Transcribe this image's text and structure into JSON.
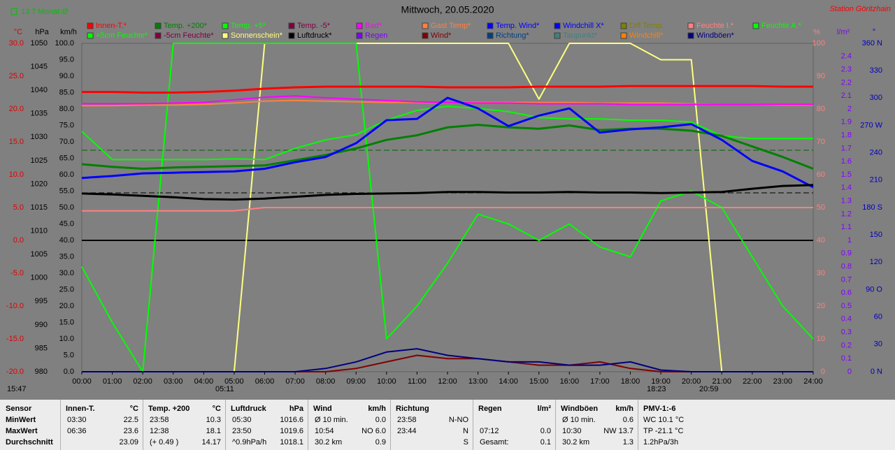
{
  "header": {
    "monat": "13.7 Monat-Ø",
    "title": "Mittwoch, 20.05.2020",
    "station": "Station Göritzhain"
  },
  "chart_data": {
    "type": "line",
    "categories": [
      "00:00",
      "01:00",
      "02:00",
      "03:00",
      "04:00",
      "05:00",
      "06:00",
      "07:00",
      "08:00",
      "09:00",
      "10:00",
      "11:00",
      "12:00",
      "13:00",
      "14:00",
      "15:00",
      "16:00",
      "17:00",
      "18:00",
      "19:00",
      "20:00",
      "21:00",
      "22:00",
      "23:00",
      "24:00"
    ],
    "axes": [
      {
        "label": "°C",
        "color": "#e00000",
        "side": "left",
        "lim": [
          -20,
          30
        ],
        "ticks": [
          {
            "value": 30,
            "label": "30.0"
          },
          {
            "value": 25,
            "label": "25.0"
          },
          {
            "value": 20,
            "label": "20.0"
          },
          {
            "value": 15,
            "label": "15.0"
          },
          {
            "value": 10,
            "label": "10.0"
          },
          {
            "value": 5,
            "label": "5.0"
          },
          {
            "value": 0,
            "label": "0.0"
          },
          {
            "value": -5,
            "label": "-5.0"
          },
          {
            "value": -10,
            "label": "-10.0"
          },
          {
            "value": -15,
            "label": "-15.0"
          },
          {
            "value": -20,
            "label": "-20.0"
          }
        ]
      },
      {
        "label": "hPa",
        "color": "#000000",
        "side": "left",
        "lim": [
          980,
          1050
        ],
        "ticks": [
          1050,
          1045,
          1040,
          1035,
          1030,
          1025,
          1020,
          1015,
          1010,
          1005,
          1000,
          995,
          990,
          985,
          980
        ]
      },
      {
        "label": "km/h",
        "color": "#000000",
        "side": "left",
        "lim": [
          0,
          100
        ],
        "ticks": [
          {
            "value": 100,
            "label": "100.0"
          },
          {
            "value": 95,
            "label": "95.0"
          },
          {
            "value": 90,
            "label": "90.0"
          },
          {
            "value": 85,
            "label": "85.0"
          },
          {
            "value": 80,
            "label": "80.0"
          },
          {
            "value": 75,
            "label": "75.0"
          },
          {
            "value": 70,
            "label": "70.0"
          },
          {
            "value": 65,
            "label": "65.0"
          },
          {
            "value": 60,
            "label": "60.0"
          },
          {
            "value": 55,
            "label": "55.0"
          },
          {
            "value": 50,
            "label": "50.0"
          },
          {
            "value": 45,
            "label": "45.0"
          },
          {
            "value": 40,
            "label": "40.0"
          },
          {
            "value": 35,
            "label": "35.0"
          },
          {
            "value": 30,
            "label": "30.0"
          },
          {
            "value": 25,
            "label": "25.0"
          },
          {
            "value": 20,
            "label": "20.0"
          },
          {
            "value": 15,
            "label": "15.0"
          },
          {
            "value": 10,
            "label": "10.0"
          },
          {
            "value": 5,
            "label": "5.0"
          },
          {
            "value": 0,
            "label": "0.0"
          }
        ]
      },
      {
        "label": "%",
        "color": "#ff8080",
        "side": "right",
        "lim": [
          0,
          100
        ],
        "ticks": [
          100,
          90,
          80,
          70,
          60,
          50,
          40,
          30,
          20,
          10,
          0
        ]
      },
      {
        "label": "l/m²",
        "color": "#8000ff",
        "side": "right",
        "lim": [
          0,
          2.5
        ],
        "ticks": [
          2.4,
          2.3,
          2.2,
          2.1,
          2,
          1.9,
          1.8,
          1.7,
          1.6,
          1.5,
          1.4,
          1.3,
          1.2,
          1.1,
          1,
          0.9,
          0.8,
          0.7,
          0.6,
          0.5,
          0.4,
          0.3,
          0.2,
          0.1,
          0
        ]
      },
      {
        "label": "°",
        "color": "#0000c0",
        "side": "right",
        "lim": [
          0,
          360
        ],
        "ticks": [
          {
            "value": 360,
            "label": "360 N"
          },
          330,
          300,
          {
            "value": 270,
            "label": "270 W"
          },
          240,
          210,
          {
            "value": 180,
            "label": "180 S"
          },
          150,
          120,
          {
            "value": 90,
            "label": "90 O"
          },
          60,
          30,
          {
            "value": 0,
            "label": "0 N"
          }
        ]
      }
    ],
    "legend": [
      {
        "name": "Innen-T.*",
        "color": "#ff0000"
      },
      {
        "name": "Temp. +200*",
        "color": "#008000"
      },
      {
        "name": "Temp. +5*",
        "color": "#00ff00"
      },
      {
        "name": "Temp. -5*",
        "color": "#800040"
      },
      {
        "name": "Bad*",
        "color": "#ff00ff"
      },
      {
        "name": "Gast Temp*",
        "color": "#ff8040"
      },
      {
        "name": "Temp. Wind*",
        "color": "#0000ff"
      },
      {
        "name": "Windchill X*",
        "color": "#0000ff"
      },
      {
        "name": "Diff Temp.",
        "color": "#808000"
      },
      {
        "name": "Feuchte I.*",
        "color": "#ff8080"
      },
      {
        "name": "Feuchte A.*",
        "color": "#00ff00"
      },
      {
        "name": "+5cm Feuchte*",
        "color": "#00ff00"
      },
      {
        "name": "-5cm Feuchte*",
        "color": "#800040"
      },
      {
        "name": "Sonnenschein*",
        "color": "#ffff80"
      },
      {
        "name": "Luftdruck*",
        "color": "#000000"
      },
      {
        "name": "Regen",
        "color": "#8000ff"
      },
      {
        "name": "Wind*",
        "color": "#800000"
      },
      {
        "name": "Richtung*",
        "color": "#004080"
      },
      {
        "name": "Taupunkt*",
        "color": "#408080"
      },
      {
        "name": "Windchill*",
        "color": "#ff8000"
      },
      {
        "name": "Windböen*",
        "color": "#000080"
      }
    ],
    "series": [
      {
        "name": "Sonnenschein*",
        "color": "#ffff80",
        "axis": 3,
        "values": [
          0,
          0,
          0,
          0,
          0,
          0,
          100,
          100,
          100,
          100,
          100,
          100,
          100,
          100,
          100,
          83,
          100,
          100,
          100,
          95,
          95,
          0,
          0,
          0,
          0
        ]
      },
      {
        "name": "Feuchte A.*",
        "color": "#00ff00",
        "axis": 3,
        "values": [
          32,
          15,
          0,
          100,
          100,
          100,
          100,
          100,
          100,
          100,
          10,
          20,
          33,
          48,
          45,
          40,
          45,
          38,
          35,
          52,
          55,
          50,
          35,
          20,
          10
        ]
      },
      {
        "name": "Feuchte I.*",
        "color": "#ff8080",
        "axis": 3,
        "values": [
          49,
          49,
          49,
          49,
          49,
          49,
          50,
          50,
          50,
          50,
          50,
          50,
          50,
          50,
          50,
          50,
          50,
          50,
          50,
          50,
          50,
          50,
          50,
          50,
          50
        ]
      },
      {
        "name": "Gast Temp*",
        "color": "#ff8040",
        "axis": 0,
        "values": [
          20.5,
          20.5,
          20.6,
          20.6,
          20.7,
          20.9,
          21.2,
          21.3,
          21.2,
          21.1,
          21.0,
          21.0,
          21.0,
          21.0,
          21.0,
          21.0,
          21.0,
          20.9,
          20.9,
          20.9,
          20.8,
          20.7,
          20.7,
          20.6,
          20.6
        ]
      },
      {
        "name": "Bad*",
        "color": "#ff00ff",
        "axis": 0,
        "values": [
          20.8,
          20.8,
          20.8,
          20.9,
          21.0,
          21.4,
          21.8,
          22.0,
          21.7,
          21.5,
          21.3,
          21.1,
          21.0,
          20.9,
          20.9,
          20.8,
          20.8,
          20.8,
          20.7,
          20.7,
          20.7,
          20.7,
          20.7,
          20.7,
          20.7
        ]
      },
      {
        "name": "Innen-T.*",
        "color": "#ff0000",
        "axis": 0,
        "values": [
          22.6,
          22.6,
          22.5,
          22.5,
          22.6,
          22.8,
          23.1,
          23.3,
          23.4,
          23.4,
          23.4,
          23.4,
          23.3,
          23.3,
          23.3,
          23.4,
          23.4,
          23.4,
          23.5,
          23.5,
          23.5,
          23.5,
          23.5,
          23.4,
          23.4
        ]
      },
      {
        "name": "Temp. +5*",
        "color": "#00ff00",
        "axis": 0,
        "values": [
          16.6,
          12.3,
          12.3,
          12.3,
          12.3,
          12.4,
          12.3,
          14.0,
          15.3,
          16.1,
          18.3,
          19.8,
          20.4,
          20.1,
          19.6,
          18.7,
          18.5,
          18.5,
          18.3,
          18.3,
          18.0,
          15.9,
          15.5,
          15.5,
          15.5
        ]
      },
      {
        "name": "Temp. +200*",
        "color": "#008000",
        "axis": 0,
        "values": [
          11.6,
          11.2,
          10.9,
          11.1,
          11.2,
          11.3,
          11.4,
          12.2,
          13.0,
          14.0,
          15.3,
          16.0,
          17.2,
          17.6,
          17.2,
          17.0,
          17.5,
          16.8,
          17.0,
          17.0,
          16.7,
          15.9,
          14.3,
          12.7,
          10.9
        ]
      },
      {
        "name": "Temp. Wind*",
        "color": "#0000ff",
        "axis": 0,
        "values": [
          9.5,
          9.8,
          10.2,
          10.3,
          10.4,
          10.5,
          10.9,
          11.9,
          12.7,
          14.8,
          18.3,
          18.5,
          21.7,
          20.1,
          17.4,
          19.0,
          20.1,
          16.4,
          16.9,
          17.2,
          17.7,
          15.3,
          12.1,
          10.5,
          8.1
        ]
      },
      {
        "name": "Luftdruck*",
        "color": "#000000",
        "axis": 1,
        "values": [
          1018.0,
          1017.8,
          1017.5,
          1017.2,
          1016.8,
          1016.7,
          1016.9,
          1017.3,
          1017.7,
          1017.9,
          1018.0,
          1018.1,
          1018.3,
          1018.3,
          1018.2,
          1018.2,
          1018.3,
          1018.2,
          1018.2,
          1018.1,
          1018.2,
          1018.3,
          1019.0,
          1019.6,
          1019.8
        ]
      },
      {
        "name": "Wind*",
        "color": "#800000",
        "axis": 2,
        "values": [
          0,
          0,
          0,
          0,
          0,
          0,
          0,
          0,
          0,
          1,
          3,
          5,
          4,
          4,
          3,
          2,
          2,
          3,
          1,
          0,
          0,
          0,
          0,
          0,
          0
        ]
      },
      {
        "name": "Windböen*",
        "color": "#000080",
        "axis": 2,
        "values": [
          0,
          0,
          0,
          0,
          0,
          0,
          0,
          0,
          1,
          3,
          6,
          7,
          5,
          4,
          3,
          3,
          2,
          2,
          3,
          0.5,
          0,
          0,
          0,
          0,
          0
        ]
      }
    ],
    "time_labels": [
      "15:47",
      "05:11",
      "18:23",
      "20:59"
    ]
  },
  "table": {
    "sensor": "Sensor",
    "row_labels": [
      "MinWert",
      "MaxWert",
      "Durchschnitt"
    ],
    "groups": [
      {
        "title": "Innen-T.",
        "unit": "°C",
        "rows": [
          [
            "03:30",
            "22.5"
          ],
          [
            "06:36",
            "23.6"
          ],
          [
            "23.09"
          ]
        ]
      },
      {
        "title": "Temp. +200",
        "unit": "°C",
        "rows": [
          [
            "23:58",
            "10.3"
          ],
          [
            "12:38",
            "18.1"
          ],
          [
            "(+ 0.49 )",
            "14.17"
          ]
        ]
      },
      {
        "title": "Luftdruck",
        "unit": "hPa",
        "rows": [
          [
            "05:30",
            "1016.6"
          ],
          [
            "23:50",
            "1019.6"
          ],
          [
            "^0.9hPa/h",
            "1018.1"
          ]
        ]
      },
      {
        "title": "Wind",
        "unit": "km/h",
        "rows": [
          [
            "Ø 10 min.",
            "0.0"
          ],
          [
            "10:54",
            "NO 6.0"
          ],
          [
            "30.2 km",
            "0.9"
          ]
        ]
      },
      {
        "title": "Richtung",
        "rows": [
          [
            "23:58",
            "N-NO"
          ],
          [
            "23:44",
            "N"
          ],
          [
            "S"
          ]
        ]
      },
      {
        "title": "Regen",
        "unit": "l/m²",
        "rows": [
          [],
          [
            "07:12",
            "0.0"
          ],
          [
            "Gesamt:",
            "0.1"
          ]
        ]
      },
      {
        "title": "Windböen",
        "unit": "km/h",
        "rows": [
          [
            "Ø 10 min.",
            "0.6"
          ],
          [
            "10:30",
            "NW 13.7"
          ],
          [
            "30.2 km",
            "1.3"
          ]
        ]
      },
      {
        "title": "PMV-1:-6",
        "rows": [
          [
            "WC 10.1 °C"
          ],
          [
            "TP -21.1 °C"
          ],
          [
            "1.2hPa/3h"
          ]
        ]
      }
    ]
  }
}
